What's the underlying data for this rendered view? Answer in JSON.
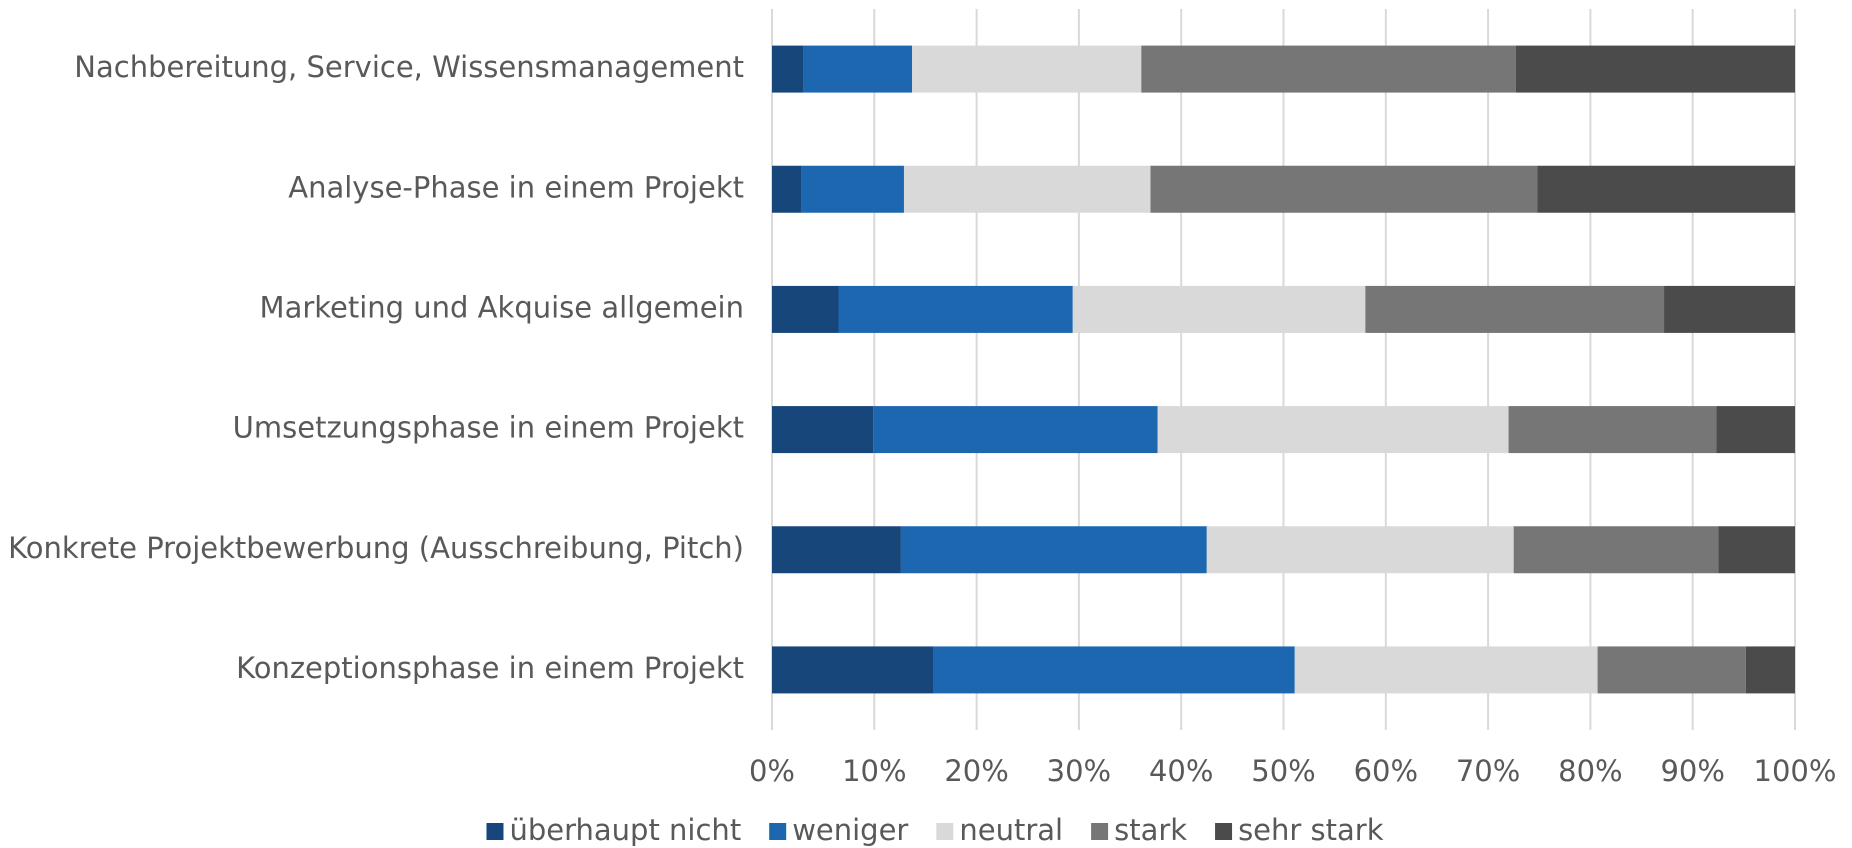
{
  "chart_data": {
    "type": "stacked-bar-horizontal",
    "categories": [
      "Nachbereitung, Service, Wissensmanagement",
      "Analyse-Phase in einem Projekt",
      "Marketing und Akquise allgemein",
      "Umsetzungsphase in einem Projekt",
      "Konkrete Projektbewerbung (Ausschreibung, Pitch)",
      "Konzeptionsphase in einem Projekt"
    ],
    "series": [
      {
        "name": "überhaupt nicht",
        "color": "#16467a",
        "values": [
          3.1,
          2.9,
          6.5,
          9.9,
          12.6,
          15.8
        ]
      },
      {
        "name": "weniger",
        "color": "#1c67b0",
        "values": [
          10.6,
          10.0,
          22.9,
          27.8,
          29.9,
          35.3
        ]
      },
      {
        "name": "neutral",
        "color": "#d9d9d9",
        "values": [
          22.4,
          24.1,
          28.6,
          34.3,
          30.0,
          29.6
        ]
      },
      {
        "name": "stark",
        "color": "#767676",
        "values": [
          36.6,
          37.8,
          29.2,
          20.3,
          20.0,
          14.5
        ]
      },
      {
        "name": "sehr stark",
        "color": "#4b4b4b",
        "values": [
          27.3,
          25.2,
          12.8,
          7.7,
          7.5,
          4.8
        ]
      }
    ],
    "xlim": [
      0,
      100
    ],
    "xticks": [
      {
        "value": 0,
        "label": "0%"
      },
      {
        "value": 10,
        "label": "10%"
      },
      {
        "value": 20,
        "label": "20%"
      },
      {
        "value": 30,
        "label": "30%"
      },
      {
        "value": 40,
        "label": "40%"
      },
      {
        "value": 50,
        "label": "50%"
      },
      {
        "value": 60,
        "label": "60%"
      },
      {
        "value": 70,
        "label": "70%"
      },
      {
        "value": 80,
        "label": "80%"
      },
      {
        "value": 90,
        "label": "90%"
      },
      {
        "value": 100,
        "label": "100%"
      }
    ],
    "grid": true,
    "legend": "bottom"
  }
}
